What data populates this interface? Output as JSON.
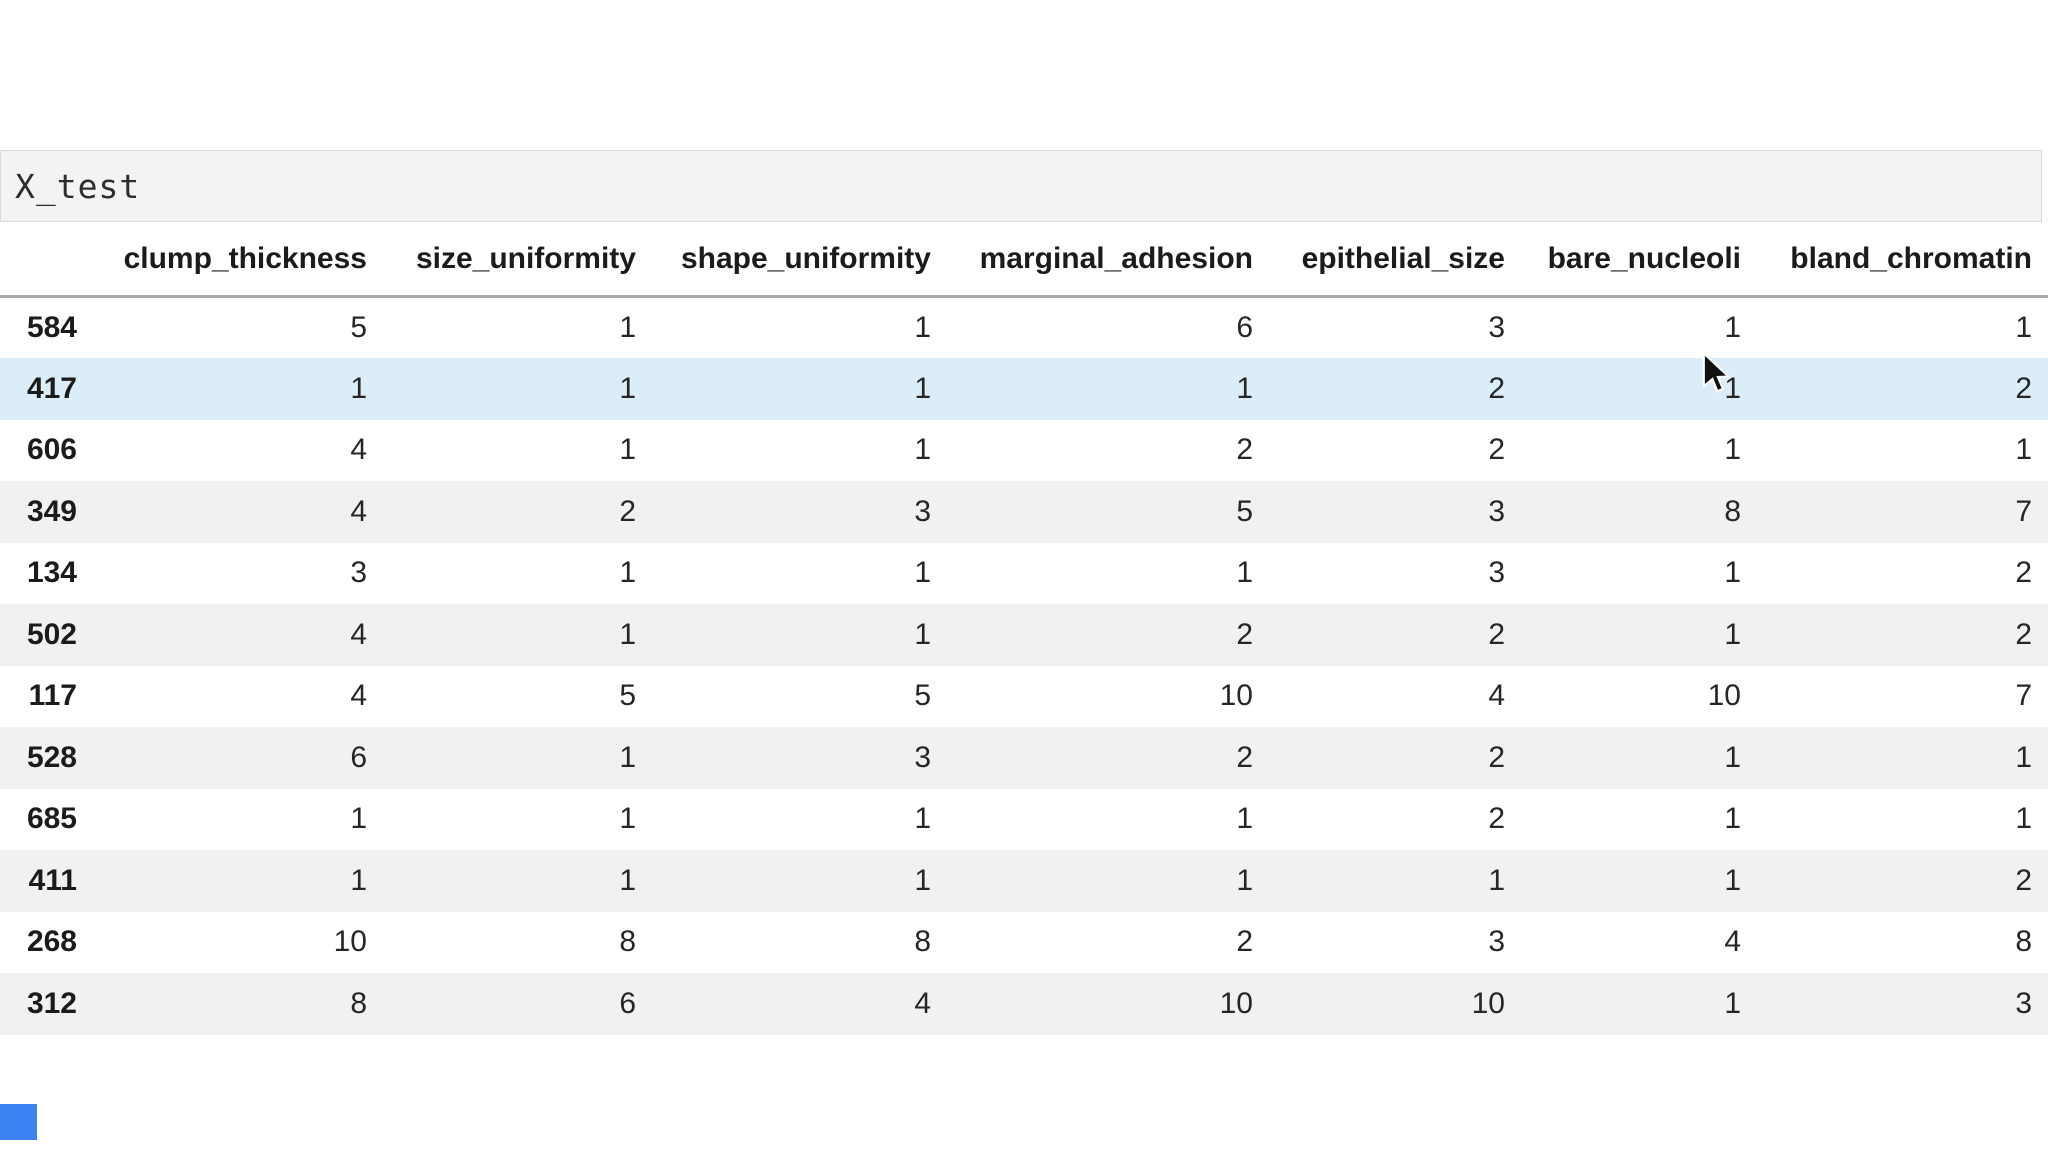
{
  "title": "X_test",
  "table": {
    "columns": [
      "clump_thickness",
      "size_uniformity",
      "shape_uniformity",
      "marginal_adhesion",
      "epithelial_size",
      "bare_nucleoli",
      "bland_chromatin"
    ],
    "rows": [
      {
        "index": "584",
        "values": [
          5,
          1,
          1,
          6,
          3,
          1,
          1
        ],
        "highlighted": false
      },
      {
        "index": "417",
        "values": [
          1,
          1,
          1,
          1,
          2,
          1,
          2
        ],
        "highlighted": true
      },
      {
        "index": "606",
        "values": [
          4,
          1,
          1,
          2,
          2,
          1,
          1
        ],
        "highlighted": false
      },
      {
        "index": "349",
        "values": [
          4,
          2,
          3,
          5,
          3,
          8,
          7
        ],
        "highlighted": false
      },
      {
        "index": "134",
        "values": [
          3,
          1,
          1,
          1,
          3,
          1,
          2
        ],
        "highlighted": false
      },
      {
        "index": "502",
        "values": [
          4,
          1,
          1,
          2,
          2,
          1,
          2
        ],
        "highlighted": false
      },
      {
        "index": "117",
        "values": [
          4,
          5,
          5,
          10,
          4,
          10,
          7
        ],
        "highlighted": false
      },
      {
        "index": "528",
        "values": [
          6,
          1,
          3,
          2,
          2,
          1,
          1
        ],
        "highlighted": false
      },
      {
        "index": "685",
        "values": [
          1,
          1,
          1,
          1,
          2,
          1,
          1
        ],
        "highlighted": false
      },
      {
        "index": "411",
        "values": [
          1,
          1,
          1,
          1,
          1,
          1,
          2
        ],
        "highlighted": false
      },
      {
        "index": "268",
        "values": [
          10,
          8,
          8,
          2,
          3,
          4,
          8
        ],
        "highlighted": false
      },
      {
        "index": "312",
        "values": [
          8,
          6,
          4,
          10,
          10,
          1,
          3
        ],
        "highlighted": false
      }
    ]
  },
  "colors": {
    "row_stripe": "#f1f1f3",
    "row_highlight": "#daedf9",
    "title_box_bg": "#f3f3f4",
    "title_box_border": "#d9d9d9",
    "header_border": "#ababab",
    "text": "#262626",
    "indicator_blue": "#3c82f0"
  }
}
